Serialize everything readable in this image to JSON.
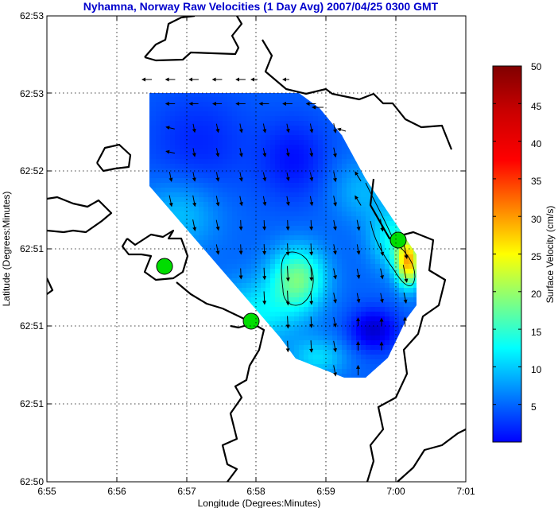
{
  "chart_data": {
    "type": "heatmap",
    "title": "Nyhamna, Norway Raw Velocities (1 Day Avg) 2007/04/25 0300 GMT",
    "xlabel": "Longitude (Degrees:Minutes)",
    "ylabel": "Latitude (Degrees:Minutes)",
    "x_ticks": [
      "6:55",
      "6:56",
      "6:57",
      "6:58",
      "6:59",
      "7:00",
      "7:01"
    ],
    "y_ticks": [
      "62:50",
      "62:51",
      "62:51",
      "62:51",
      "62:52",
      "62:53",
      "62:53"
    ],
    "grid": true,
    "colorbar": {
      "label": "Surface Velocity (cm/s)",
      "range": [
        0,
        50
      ],
      "ticks": [
        "5",
        "10",
        "15",
        "20",
        "25",
        "30",
        "35",
        "40",
        "45",
        "50"
      ],
      "colormap": "jet"
    },
    "speed_field": {
      "description": "surface current speed, cm/s, over the coverage polygon",
      "max_hotspot": 33,
      "central_max": 24,
      "background_level": 11,
      "min_pocket": 4
    },
    "site_markers": 3,
    "marker_color": "#00dd00",
    "title_color": "#0000cc"
  }
}
